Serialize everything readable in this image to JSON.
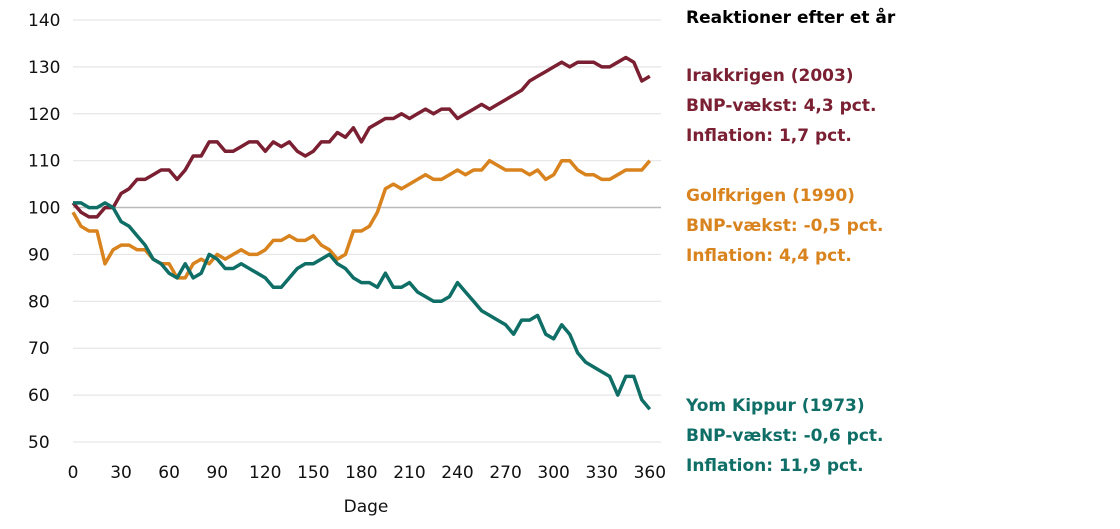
{
  "chart_data": {
    "type": "line",
    "title": "Reaktioner efter et år",
    "xlabel": "Dage",
    "ylabel": "",
    "xlim": [
      0,
      362
    ],
    "ylim": [
      50,
      140
    ],
    "xticks": [
      0,
      30,
      60,
      90,
      120,
      150,
      180,
      210,
      240,
      270,
      300,
      330,
      360
    ],
    "yticks": [
      50,
      60,
      70,
      80,
      90,
      100,
      110,
      120,
      130,
      140
    ],
    "baseline": 100,
    "x": [
      0,
      5,
      10,
      15,
      20,
      25,
      30,
      35,
      40,
      45,
      50,
      55,
      60,
      65,
      70,
      75,
      80,
      85,
      90,
      95,
      100,
      105,
      110,
      115,
      120,
      125,
      130,
      135,
      140,
      145,
      150,
      155,
      160,
      165,
      170,
      175,
      180,
      185,
      190,
      195,
      200,
      205,
      210,
      215,
      220,
      225,
      230,
      235,
      240,
      245,
      250,
      255,
      260,
      265,
      270,
      275,
      280,
      285,
      290,
      295,
      300,
      305,
      310,
      315,
      320,
      325,
      330,
      335,
      340,
      345,
      350,
      355,
      360
    ],
    "series": [
      {
        "name": "Irakkrigen (2003)",
        "color": "#7a2032",
        "labels": [
          "Irakkrigen (2003)",
          "BNP-vækst: 4,3 pct.",
          "Inflation: 1,7 pct."
        ],
        "values": [
          101,
          99,
          98,
          98,
          100,
          100,
          103,
          104,
          106,
          106,
          107,
          108,
          108,
          106,
          108,
          111,
          111,
          114,
          114,
          112,
          112,
          113,
          114,
          114,
          112,
          114,
          113,
          114,
          112,
          111,
          112,
          114,
          114,
          116,
          115,
          117,
          114,
          117,
          118,
          119,
          119,
          120,
          119,
          120,
          121,
          120,
          121,
          121,
          119,
          120,
          121,
          122,
          121,
          122,
          123,
          124,
          125,
          127,
          128,
          129,
          130,
          131,
          130,
          131,
          131,
          131,
          130,
          130,
          131,
          132,
          131,
          127,
          128
        ]
      },
      {
        "name": "Golfkrigen (1990)",
        "color": "#d8831e",
        "labels": [
          "Golfkrigen (1990)",
          "BNP-vækst: -0,5 pct.",
          "Inflation: 4,4 pct."
        ],
        "values": [
          99,
          96,
          95,
          95,
          88,
          91,
          92,
          92,
          91,
          91,
          89,
          88,
          88,
          85,
          85,
          88,
          89,
          88,
          90,
          89,
          90,
          91,
          90,
          90,
          91,
          93,
          93,
          94,
          93,
          93,
          94,
          92,
          91,
          89,
          90,
          95,
          95,
          96,
          99,
          104,
          105,
          104,
          105,
          106,
          107,
          106,
          106,
          107,
          108,
          107,
          108,
          108,
          110,
          109,
          108,
          108,
          108,
          107,
          108,
          106,
          107,
          110,
          110,
          108,
          107,
          107,
          106,
          106,
          107,
          108,
          108,
          108,
          110
        ]
      },
      {
        "name": "Yom Kippur (1973)",
        "color": "#0f6e66",
        "labels": [
          "Yom Kippur (1973)",
          "BNP-vækst: -0,6 pct.",
          "Inflation: 11,9 pct."
        ],
        "values": [
          101,
          101,
          100,
          100,
          101,
          100,
          97,
          96,
          94,
          92,
          89,
          88,
          86,
          85,
          88,
          85,
          86,
          90,
          89,
          87,
          87,
          88,
          87,
          86,
          85,
          83,
          83,
          85,
          87,
          88,
          88,
          89,
          90,
          88,
          87,
          85,
          84,
          84,
          83,
          86,
          83,
          83,
          84,
          82,
          81,
          80,
          80,
          81,
          84,
          82,
          80,
          78,
          77,
          76,
          75,
          73,
          76,
          76,
          77,
          73,
          72,
          75,
          73,
          69,
          67,
          66,
          65,
          64,
          60,
          64,
          64,
          59,
          57
        ]
      }
    ]
  }
}
